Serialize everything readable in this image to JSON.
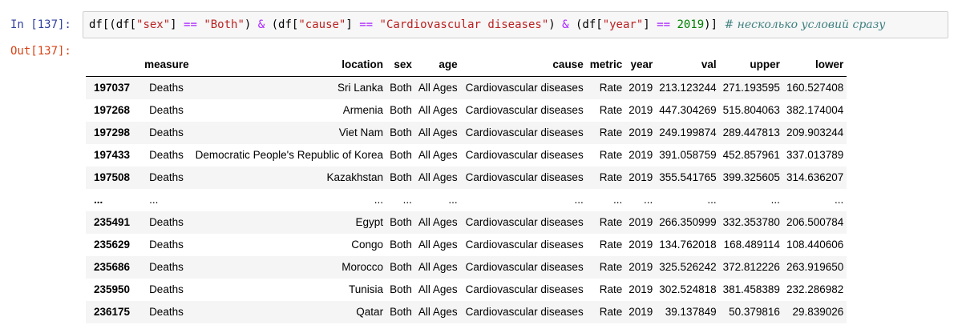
{
  "cell": {
    "in_prompt": "In [137]:",
    "out_prompt": "Out[137]:",
    "code": {
      "t1": "df[(df[",
      "s1": "\"sex\"",
      "t2": "] ",
      "o1": "==",
      "t3": " ",
      "s2": "\"Both\"",
      "t4": ") ",
      "o2": "&",
      "t5": " (df[",
      "s3": "\"cause\"",
      "t6": "] ",
      "o3": "==",
      "t7": " ",
      "s4": "\"Cardiovascular diseases\"",
      "t8": ") ",
      "o4": "&",
      "t9": " (df[",
      "s5": "\"year\"",
      "t10": "] ",
      "o5": "==",
      "t11": " ",
      "n1": "2019",
      "t12": ")] ",
      "comment": "# несколько условий сразу"
    }
  },
  "table": {
    "columns": [
      "",
      "measure",
      "location",
      "sex",
      "age",
      "cause",
      "metric",
      "year",
      "val",
      "upper",
      "lower"
    ],
    "rows": [
      [
        "197037",
        "Deaths",
        "Sri Lanka",
        "Both",
        "All Ages",
        "Cardiovascular diseases",
        "Rate",
        "2019",
        "213.123244",
        "271.193595",
        "160.527408"
      ],
      [
        "197268",
        "Deaths",
        "Armenia",
        "Both",
        "All Ages",
        "Cardiovascular diseases",
        "Rate",
        "2019",
        "447.304269",
        "515.804063",
        "382.174004"
      ],
      [
        "197298",
        "Deaths",
        "Viet Nam",
        "Both",
        "All Ages",
        "Cardiovascular diseases",
        "Rate",
        "2019",
        "249.199874",
        "289.447813",
        "209.903244"
      ],
      [
        "197433",
        "Deaths",
        "Democratic People's Republic of Korea",
        "Both",
        "All Ages",
        "Cardiovascular diseases",
        "Rate",
        "2019",
        "391.058759",
        "452.857961",
        "337.013789"
      ],
      [
        "197508",
        "Deaths",
        "Kazakhstan",
        "Both",
        "All Ages",
        "Cardiovascular diseases",
        "Rate",
        "2019",
        "355.541765",
        "399.325605",
        "314.636207"
      ],
      [
        "...",
        "...",
        "...",
        "...",
        "...",
        "...",
        "...",
        "...",
        "...",
        "...",
        "..."
      ],
      [
        "235491",
        "Deaths",
        "Egypt",
        "Both",
        "All Ages",
        "Cardiovascular diseases",
        "Rate",
        "2019",
        "266.350999",
        "332.353780",
        "206.500784"
      ],
      [
        "235629",
        "Deaths",
        "Congo",
        "Both",
        "All Ages",
        "Cardiovascular diseases",
        "Rate",
        "2019",
        "134.762018",
        "168.489114",
        "108.440606"
      ],
      [
        "235686",
        "Deaths",
        "Morocco",
        "Both",
        "All Ages",
        "Cardiovascular diseases",
        "Rate",
        "2019",
        "325.526242",
        "372.812226",
        "263.919650"
      ],
      [
        "235950",
        "Deaths",
        "Tunisia",
        "Both",
        "All Ages",
        "Cardiovascular diseases",
        "Rate",
        "2019",
        "302.524818",
        "381.458389",
        "232.286982"
      ],
      [
        "236175",
        "Deaths",
        "Qatar",
        "Both",
        "All Ages",
        "Cardiovascular diseases",
        "Rate",
        "2019",
        "39.137849",
        "50.379816",
        "29.839026"
      ]
    ]
  },
  "colors": {
    "in_prompt": "#303f9f",
    "out_prompt": "#d84315",
    "string": "#ba2121",
    "operator": "#aa22ff",
    "number": "#008000",
    "comment": "#408080",
    "stripe": "#f5f5f5"
  }
}
